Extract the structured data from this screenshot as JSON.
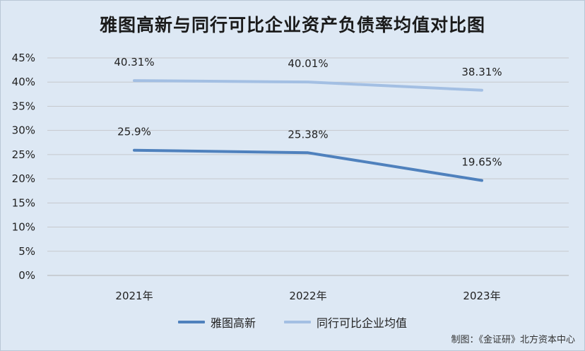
{
  "chart_data": {
    "type": "line",
    "title": "雅图高新与同行可比企业资产负债率均值对比图",
    "categories": [
      "2021年",
      "2022年",
      "2023年"
    ],
    "y_ticks": [
      "0%",
      "5%",
      "10%",
      "15%",
      "20%",
      "25%",
      "30%",
      "35%",
      "40%",
      "45%"
    ],
    "ylim": [
      0,
      45
    ],
    "grid": true,
    "legend_position": "bottom",
    "series": [
      {
        "name": "雅图高新",
        "values": [
          25.9,
          25.38,
          19.65
        ],
        "labels": [
          "25.9%",
          "25.38%",
          "19.65%"
        ],
        "color": "#4f81bd"
      },
      {
        "name": "同行可比企业均值",
        "values": [
          40.31,
          40.01,
          38.31
        ],
        "labels": [
          "40.31%",
          "40.01%",
          "38.31%"
        ],
        "color": "#a3bfe3"
      }
    ]
  },
  "source_note": "制图：《金证研》北方资本中心"
}
